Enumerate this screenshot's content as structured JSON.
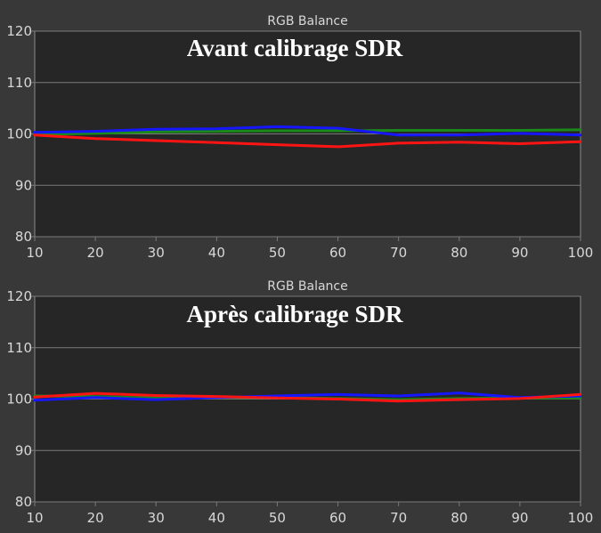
{
  "chart_data": [
    {
      "type": "line",
      "title": "RGB Balance",
      "annotation": "Avant calibrage SDR",
      "x": [
        10,
        20,
        30,
        40,
        50,
        60,
        70,
        80,
        90,
        100
      ],
      "xlim": [
        10,
        100
      ],
      "ylim": [
        80,
        120
      ],
      "yticks": [
        80,
        90,
        100,
        110,
        120
      ],
      "grid": true,
      "series": [
        {
          "color": "#1a8a1a",
          "values": [
            99.9,
            100.1,
            100.4,
            100.5,
            100.6,
            100.6,
            100.7,
            100.7,
            100.7,
            100.8
          ]
        },
        {
          "color": "#1616ff",
          "values": [
            100.3,
            100.5,
            100.9,
            101.0,
            101.4,
            101.1,
            99.8,
            99.8,
            100.1,
            99.8
          ]
        },
        {
          "color": "#ff1414",
          "values": [
            99.8,
            99.1,
            98.7,
            98.3,
            97.9,
            97.5,
            98.2,
            98.4,
            98.1,
            98.5
          ]
        }
      ]
    },
    {
      "type": "line",
      "title": "RGB Balance",
      "annotation": "Après calibrage SDR",
      "x": [
        10,
        20,
        30,
        40,
        50,
        60,
        70,
        80,
        90,
        100
      ],
      "xlim": [
        10,
        100
      ],
      "ylim": [
        80,
        120
      ],
      "yticks": [
        80,
        90,
        100,
        110,
        120
      ],
      "grid": true,
      "series": [
        {
          "color": "#1a8a1a",
          "values": [
            100.6,
            100.5,
            100.2,
            100.3,
            100.3,
            100.1,
            99.9,
            100.1,
            100.2,
            100.2
          ]
        },
        {
          "color": "#1616ff",
          "values": [
            99.8,
            100.3,
            99.9,
            100.3,
            100.6,
            100.9,
            100.6,
            101.2,
            100.3,
            100.6
          ]
        },
        {
          "color": "#ff1414",
          "values": [
            100.4,
            101.1,
            100.7,
            100.5,
            100.2,
            100.0,
            99.6,
            99.9,
            100.1,
            100.9
          ]
        }
      ]
    }
  ]
}
